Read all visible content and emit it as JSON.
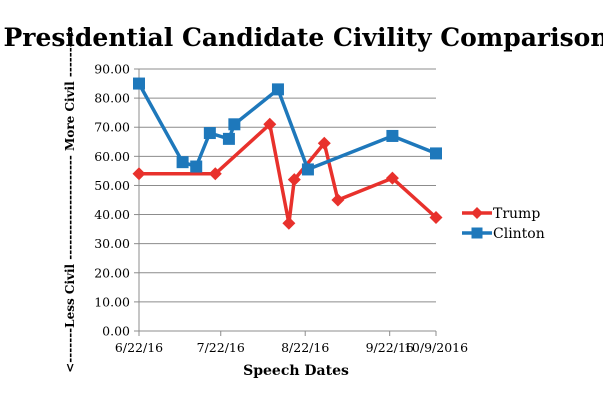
{
  "chart_data": {
    "type": "line",
    "title": "Presidential Candidate Civility Comparison",
    "xlabel": "Speech Dates",
    "ylabel": "<-------Less Civil --------------------- More Civil -------->",
    "ylim": [
      0,
      90
    ],
    "yticks": [
      "0.00",
      "10.00",
      "20.00",
      "30.00",
      "40.00",
      "50.00",
      "60.00",
      "70.00",
      "80.00",
      "90.00"
    ],
    "xlim": [
      "2016-06-22",
      "2016-10-09"
    ],
    "xticks": [
      {
        "date": "2016-06-22",
        "label": "6/22/16"
      },
      {
        "date": "2016-07-22",
        "label": "7/22/16"
      },
      {
        "date": "2016-08-22",
        "label": "8/22/16"
      },
      {
        "date": "2016-09-22",
        "label": "9/22/16"
      },
      {
        "date": "2016-10-09",
        "label": "10/9/2016"
      }
    ],
    "grid": true,
    "legend_position": "right",
    "series": [
      {
        "name": "Trump",
        "color": "#e8312c",
        "marker": "diamond",
        "points": [
          {
            "x": "2016-06-22",
            "y": 54
          },
          {
            "x": "2016-07-20",
            "y": 54
          },
          {
            "x": "2016-08-09",
            "y": 71
          },
          {
            "x": "2016-08-16",
            "y": 37
          },
          {
            "x": "2016-08-18",
            "y": 52
          },
          {
            "x": "2016-08-29",
            "y": 64.5
          },
          {
            "x": "2016-09-03",
            "y": 45
          },
          {
            "x": "2016-09-23",
            "y": 52.5
          },
          {
            "x": "2016-10-09",
            "y": 39
          }
        ]
      },
      {
        "name": "Clinton",
        "color": "#1e78bb",
        "marker": "square",
        "points": [
          {
            "x": "2016-06-22",
            "y": 85
          },
          {
            "x": "2016-07-08",
            "y": 58
          },
          {
            "x": "2016-07-13",
            "y": 56.5
          },
          {
            "x": "2016-07-18",
            "y": 68
          },
          {
            "x": "2016-07-25",
            "y": 66
          },
          {
            "x": "2016-07-27",
            "y": 71
          },
          {
            "x": "2016-08-12",
            "y": 83
          },
          {
            "x": "2016-08-23",
            "y": 55.5
          },
          {
            "x": "2016-09-23",
            "y": 67
          },
          {
            "x": "2016-10-09",
            "y": 61
          }
        ]
      }
    ]
  }
}
